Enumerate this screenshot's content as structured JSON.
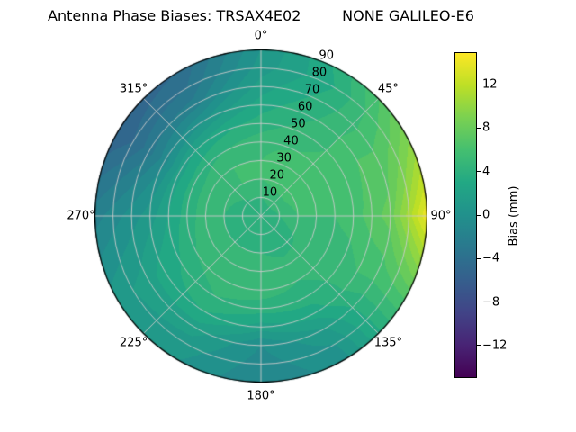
{
  "figure": {
    "background": "#ffffff"
  },
  "chart_data": {
    "type": "heatmap",
    "projection": "polar",
    "title": "Antenna Phase Biases: TRSAX4E02         NONE GALILEO-E6",
    "theta_ticks_deg": [
      0,
      45,
      90,
      135,
      180,
      225,
      270,
      315
    ],
    "theta_tick_labels": [
      "0°",
      "45°",
      "90°",
      "135°",
      "180°",
      "225°",
      "270°",
      "315°"
    ],
    "radial_ticks": [
      10,
      20,
      30,
      40,
      50,
      60,
      70,
      80,
      90
    ],
    "radial_tick_labels": [
      "10",
      "20",
      "30",
      "40",
      "50",
      "60",
      "70",
      "80",
      "90"
    ],
    "radial_label_angle_deg": 22.5,
    "rmax": 90,
    "grid_on": true,
    "grid_color": "#cbcbcb",
    "legend_position": "right-colorbar",
    "colorbar": {
      "label": "Bias (mm)",
      "ticks": [
        12,
        8,
        4,
        0,
        -4,
        -8,
        -12
      ],
      "tick_labels": [
        "12",
        "8",
        "4",
        "0",
        "−4",
        "−8",
        "−12"
      ],
      "vmin": -15,
      "vmax": 15,
      "colormap": "viridis",
      "colormap_stops": [
        [
          0.0,
          "#440154"
        ],
        [
          0.1,
          "#482475"
        ],
        [
          0.2,
          "#414487"
        ],
        [
          0.3,
          "#355f8d"
        ],
        [
          0.4,
          "#2a788e"
        ],
        [
          0.5,
          "#21918c"
        ],
        [
          0.6,
          "#22a884"
        ],
        [
          0.7,
          "#44bf70"
        ],
        [
          0.8,
          "#7ad151"
        ],
        [
          0.9,
          "#bddf26"
        ],
        [
          1.0,
          "#fde725"
        ]
      ]
    },
    "level_step_mm": 1,
    "values_grid": {
      "azimuth_deg": [
        0,
        30,
        60,
        90,
        120,
        150,
        180,
        210,
        240,
        270,
        300,
        330
      ],
      "zenith_deg": [
        0,
        10,
        20,
        30,
        40,
        50,
        60,
        70,
        80,
        90
      ],
      "bias_mm": [
        [
          3.5,
          3.5,
          3.5,
          3.5,
          3.5,
          3.5,
          3.5,
          3.5,
          3.5,
          3.5,
          3.5,
          3.5
        ],
        [
          4.5,
          5.0,
          5.0,
          4.5,
          4.0,
          3.5,
          3.5,
          3.5,
          3.5,
          3.5,
          4.0,
          4.5
        ],
        [
          5.5,
          6.0,
          6.0,
          5.5,
          4.5,
          4.0,
          4.5,
          4.5,
          4.5,
          4.5,
          5.0,
          5.5
        ],
        [
          5.5,
          6.5,
          6.5,
          5.5,
          5.0,
          5.0,
          5.5,
          5.5,
          5.0,
          5.0,
          5.0,
          5.5
        ],
        [
          5.0,
          5.5,
          6.0,
          5.5,
          5.0,
          4.5,
          5.0,
          5.0,
          4.5,
          4.0,
          4.0,
          4.5
        ],
        [
          4.0,
          5.0,
          6.0,
          6.0,
          5.0,
          4.0,
          4.0,
          4.5,
          3.5,
          2.5,
          2.0,
          3.0
        ],
        [
          3.0,
          4.5,
          6.5,
          7.0,
          5.5,
          3.0,
          2.0,
          3.5,
          3.0,
          1.0,
          -1.0,
          0.5
        ],
        [
          2.0,
          4.0,
          6.5,
          8.0,
          5.5,
          1.5,
          -0.5,
          2.0,
          2.0,
          0.0,
          -3.0,
          -2.0
        ],
        [
          1.0,
          3.5,
          7.5,
          11.0,
          6.0,
          0.5,
          -1.0,
          1.0,
          1.5,
          -1.0,
          -4.5,
          -3.5
        ],
        [
          0.5,
          4.0,
          9.0,
          14.5,
          6.5,
          0.0,
          -1.5,
          0.5,
          1.0,
          -2.0,
          -5.5,
          -4.5
        ]
      ]
    }
  }
}
